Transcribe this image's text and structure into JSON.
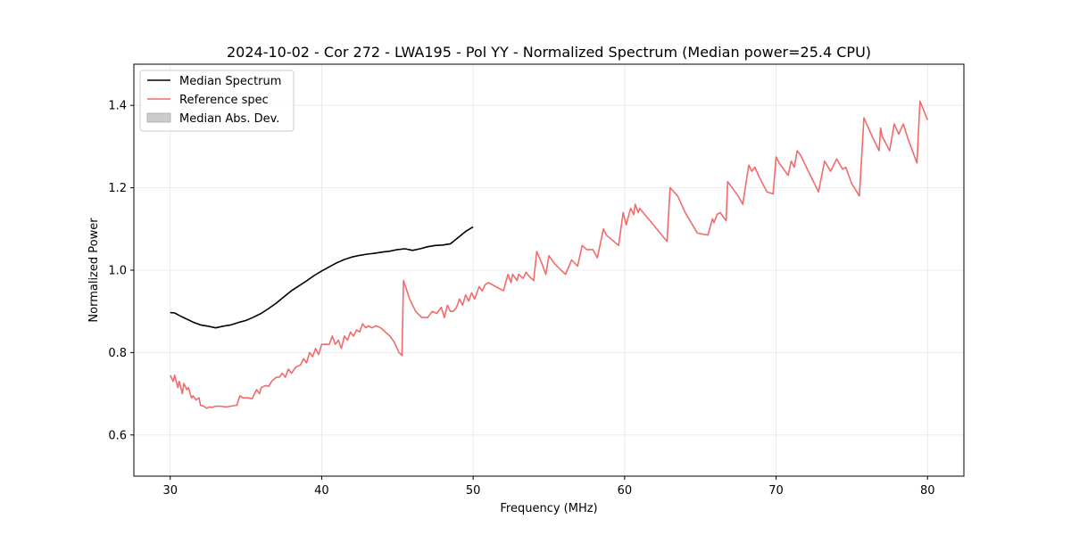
{
  "chart_data": {
    "type": "line",
    "title": "2024-10-02 - Cor 272 - LWA195 - Pol YY - Normalized Spectrum (Median power=25.4 CPU)",
    "xlabel": "Frequency (MHz)",
    "ylabel": "Normalized Power",
    "xlim": [
      27.6,
      82.4
    ],
    "ylim": [
      0.5,
      1.5
    ],
    "xticks": [
      30,
      40,
      50,
      60,
      70,
      80
    ],
    "xtick_labels": [
      "30",
      "40",
      "50",
      "60",
      "70",
      "80"
    ],
    "yticks": [
      0.6,
      0.8,
      1.0,
      1.2,
      1.4
    ],
    "ytick_labels": [
      "0.6",
      "0.8",
      "1.0",
      "1.2",
      "1.4"
    ],
    "grid": true,
    "legend_position": "top-left",
    "legend": [
      {
        "label": "Median Spectrum",
        "kind": "line",
        "color": "#000000"
      },
      {
        "label": "Reference spec",
        "kind": "line",
        "color": "#f26b6b"
      },
      {
        "label": "Median Abs. Dev.",
        "kind": "patch",
        "color": "#cccccc"
      }
    ],
    "series": [
      {
        "name": "Median Spectrum",
        "color": "#000000",
        "x": [
          30.0,
          30.3,
          30.6,
          31.0,
          31.5,
          32.0,
          32.5,
          33.0,
          33.5,
          34.0,
          34.5,
          35.0,
          35.5,
          36.0,
          36.5,
          37.0,
          37.5,
          38.0,
          38.5,
          39.0,
          39.5,
          40.0,
          40.5,
          41.0,
          41.5,
          42.0,
          42.5,
          43.0,
          43.5,
          44.0,
          44.5,
          45.0,
          45.5,
          46.0,
          46.5,
          47.0,
          47.5,
          48.0,
          48.5,
          49.0,
          49.5,
          50.0
        ],
        "y": [
          0.897,
          0.896,
          0.89,
          0.883,
          0.874,
          0.867,
          0.864,
          0.86,
          0.864,
          0.867,
          0.873,
          0.878,
          0.886,
          0.895,
          0.907,
          0.92,
          0.935,
          0.95,
          0.962,
          0.974,
          0.987,
          0.998,
          1.008,
          1.018,
          1.026,
          1.032,
          1.036,
          1.039,
          1.041,
          1.044,
          1.046,
          1.05,
          1.052,
          1.048,
          1.052,
          1.057,
          1.06,
          1.061,
          1.064,
          1.079,
          1.094,
          1.105
        ]
      },
      {
        "name": "Reference spec",
        "color": "#f26b6b",
        "x": [
          30.0,
          30.2,
          30.3,
          30.5,
          30.6,
          30.8,
          30.9,
          31.1,
          31.2,
          31.4,
          31.5,
          31.7,
          31.9,
          32.0,
          32.2,
          32.4,
          32.6,
          32.8,
          33.0,
          33.3,
          33.7,
          34.0,
          34.4,
          34.6,
          34.8,
          35.1,
          35.4,
          35.7,
          35.9,
          36.0,
          36.3,
          36.5,
          36.7,
          37.0,
          37.2,
          37.4,
          37.6,
          37.8,
          38.0,
          38.3,
          38.6,
          38.8,
          39.0,
          39.2,
          39.4,
          39.6,
          39.8,
          40.0,
          40.3,
          40.5,
          40.7,
          40.9,
          41.1,
          41.3,
          41.5,
          41.7,
          41.9,
          42.1,
          42.3,
          42.5,
          42.7,
          42.9,
          43.1,
          43.3,
          43.6,
          43.9,
          44.2,
          44.5,
          44.8,
          45.1,
          45.3,
          45.4,
          45.8,
          46.2,
          46.6,
          47.0,
          47.3,
          47.6,
          47.9,
          48.1,
          48.3,
          48.5,
          48.7,
          48.9,
          49.1,
          49.3,
          49.5,
          49.7,
          49.9,
          50.1,
          50.4,
          50.6,
          50.8,
          51.0,
          51.5,
          52.0,
          52.3,
          52.5,
          52.6,
          52.9,
          53.0,
          53.3,
          53.5,
          53.7,
          54.0,
          54.2,
          54.5,
          54.8,
          55.0,
          55.4,
          55.8,
          56.1,
          56.5,
          56.9,
          57.2,
          57.5,
          57.9,
          58.2,
          58.6,
          58.8,
          59.6,
          59.9,
          60.1,
          60.4,
          60.6,
          60.7,
          60.9,
          61.0,
          62.8,
          63.0,
          63.5,
          64.0,
          64.8,
          65.5,
          65.8,
          65.9,
          66.1,
          66.3,
          66.7,
          66.8,
          67.5,
          67.8,
          68.2,
          68.4,
          68.6,
          68.9,
          69.4,
          69.8,
          70.0,
          70.2,
          70.8,
          71.0,
          71.2,
          71.4,
          71.6,
          72.0,
          72.8,
          73.2,
          73.6,
          74.0,
          74.4,
          74.6,
          75.0,
          75.5,
          75.8,
          76.4,
          76.8,
          76.9,
          77.0,
          77.5,
          77.8,
          78.1,
          78.4,
          78.7,
          79.3,
          79.5,
          80.0
        ],
        "y": [
          0.745,
          0.73,
          0.745,
          0.715,
          0.73,
          0.7,
          0.725,
          0.71,
          0.715,
          0.69,
          0.695,
          0.685,
          0.69,
          0.672,
          0.67,
          0.665,
          0.668,
          0.667,
          0.67,
          0.67,
          0.668,
          0.67,
          0.672,
          0.695,
          0.69,
          0.69,
          0.688,
          0.71,
          0.7,
          0.715,
          0.72,
          0.718,
          0.73,
          0.74,
          0.74,
          0.75,
          0.74,
          0.76,
          0.75,
          0.765,
          0.77,
          0.785,
          0.775,
          0.8,
          0.79,
          0.81,
          0.795,
          0.82,
          0.82,
          0.82,
          0.84,
          0.82,
          0.83,
          0.81,
          0.84,
          0.83,
          0.85,
          0.84,
          0.855,
          0.85,
          0.87,
          0.86,
          0.865,
          0.86,
          0.865,
          0.86,
          0.85,
          0.84,
          0.825,
          0.8,
          0.793,
          0.975,
          0.93,
          0.9,
          0.885,
          0.885,
          0.9,
          0.895,
          0.91,
          0.885,
          0.915,
          0.9,
          0.9,
          0.91,
          0.93,
          0.915,
          0.94,
          0.925,
          0.945,
          0.93,
          0.96,
          0.95,
          0.965,
          0.97,
          0.96,
          0.95,
          0.99,
          0.97,
          0.99,
          0.975,
          0.99,
          0.98,
          0.995,
          0.985,
          0.975,
          1.045,
          1.02,
          0.99,
          1.035,
          1.015,
          1.0,
          0.99,
          1.025,
          1.01,
          1.06,
          1.05,
          1.05,
          1.03,
          1.1,
          1.085,
          1.06,
          1.14,
          1.11,
          1.15,
          1.135,
          1.16,
          1.14,
          1.15,
          1.07,
          1.2,
          1.18,
          1.14,
          1.09,
          1.085,
          1.125,
          1.115,
          1.135,
          1.14,
          1.12,
          1.215,
          1.18,
          1.16,
          1.255,
          1.24,
          1.25,
          1.225,
          1.19,
          1.185,
          1.275,
          1.26,
          1.23,
          1.265,
          1.25,
          1.29,
          1.28,
          1.25,
          1.19,
          1.265,
          1.24,
          1.27,
          1.245,
          1.25,
          1.21,
          1.18,
          1.37,
          1.32,
          1.29,
          1.345,
          1.325,
          1.29,
          1.355,
          1.33,
          1.355,
          1.32,
          1.26,
          1.41,
          1.365
        ]
      }
    ]
  }
}
